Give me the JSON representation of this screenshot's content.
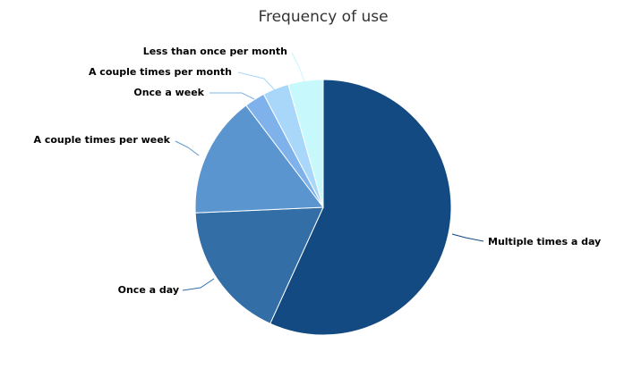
{
  "chart_data": {
    "type": "pie",
    "title": "Frequency of use",
    "slices": [
      {
        "label": "Multiple times a day",
        "value": 56.8,
        "color": "#134A81"
      },
      {
        "label": "Once a day",
        "value": 17.5,
        "color": "#336EA6"
      },
      {
        "label": "A couple times per week",
        "value": 15.4,
        "color": "#5A95CF"
      },
      {
        "label": "Once a week",
        "value": 2.6,
        "color": "#7FB2EA"
      },
      {
        "label": "A couple times per month",
        "value": 3.3,
        "color": "#A8D7FA"
      },
      {
        "label": "Less than once per month",
        "value": 4.4,
        "color": "#C6F8FC"
      }
    ]
  }
}
